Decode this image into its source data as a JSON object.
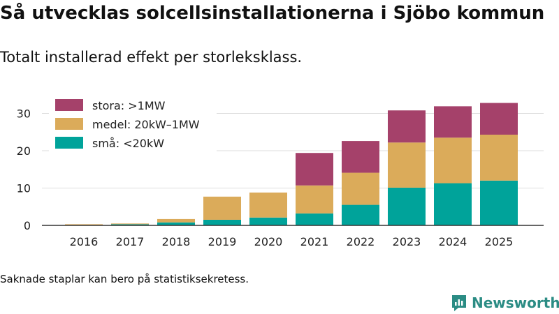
{
  "title": "Så utvecklas solcellsinstallationerna i Sjöbo kommun",
  "subtitle": "Totalt installerad effekt per storleksklass.",
  "footnote": "Saknade staplar kan bero på statistiksekretess.",
  "brand": {
    "name": "Newsworthy",
    "icon": "newsworthy-logo-icon",
    "color": "#2b8c84"
  },
  "chart_data": {
    "type": "bar",
    "stacked": true,
    "categories": [
      "2016",
      "2017",
      "2018",
      "2019",
      "2020",
      "2021",
      "2022",
      "2023",
      "2024",
      "2025"
    ],
    "series": [
      {
        "name": "små: <20kW",
        "color": "#00a39a",
        "values": [
          0.1,
          0.3,
          0.8,
          1.5,
          2.1,
          3.2,
          5.5,
          10.1,
          11.3,
          12.0
        ]
      },
      {
        "name": "medel: 20kW–1MW",
        "color": "#dbab5a",
        "values": [
          0.2,
          0.2,
          0.9,
          6.2,
          6.7,
          7.5,
          8.6,
          12.1,
          12.2,
          12.3
        ]
      },
      {
        "name": "stora: >1MW",
        "color": "#a5416a",
        "values": [
          0,
          0,
          0,
          0,
          0,
          8.7,
          8.5,
          8.6,
          8.4,
          8.5
        ]
      }
    ],
    "legend_order": [
      "stora: >1MW",
      "medel: 20kW–1MW",
      "små: <20kW"
    ],
    "ylim": [
      0,
      34
    ],
    "yticks": [
      0,
      10,
      20,
      30
    ],
    "xlabel": "",
    "ylabel": "",
    "grid": true,
    "legend_position": "top-left"
  }
}
